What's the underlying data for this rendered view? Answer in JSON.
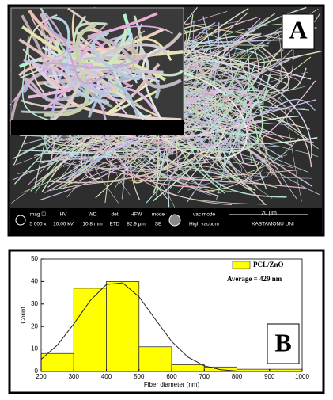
{
  "panel_a": {
    "label": "A",
    "info": [
      {
        "label": "mag ☐",
        "value": "5 000 x"
      },
      {
        "label": "HV",
        "value": "10.00 kV"
      },
      {
        "label": "WD",
        "value": "10.8 mm"
      },
      {
        "label": "det",
        "value": "ETD"
      },
      {
        "label": "HFW",
        "value": "82.9 µm"
      },
      {
        "label": "mode",
        "value": "SE"
      },
      {
        "label": "vac mode",
        "value": "High vacuum"
      }
    ],
    "scale": "20 µm",
    "institution": "KASTAMONU UNI"
  },
  "chart_data": {
    "type": "histogram",
    "label": "B",
    "bins": [
      200,
      300,
      400,
      500,
      600,
      700,
      800,
      900,
      1000
    ],
    "counts": [
      8,
      37,
      40,
      11,
      3,
      2,
      1,
      1
    ],
    "color": "#ffff00",
    "series_name": "PCL/ZnO",
    "annotation": "Average = 429 nm",
    "x_label": "Fiber diameter (nm)",
    "y_label": "Count",
    "fit": {
      "x": [
        200,
        250,
        300,
        350,
        400,
        450,
        500,
        550,
        600,
        650,
        700,
        750,
        800,
        850,
        900,
        950,
        1000
      ],
      "values": [
        5.4,
        11.8,
        21.1,
        31.4,
        38.7,
        39.4,
        33.2,
        23.2,
        13.4,
        6.4,
        2.5,
        0.8,
        0.2,
        0.1,
        0,
        0,
        0
      ]
    },
    "xlim": [
      200,
      1000
    ],
    "xticks": [
      200,
      300,
      400,
      500,
      600,
      700,
      800,
      900,
      1000
    ],
    "ylim": [
      0,
      50
    ],
    "yticks": [
      0,
      10,
      20,
      30,
      40,
      50
    ]
  }
}
